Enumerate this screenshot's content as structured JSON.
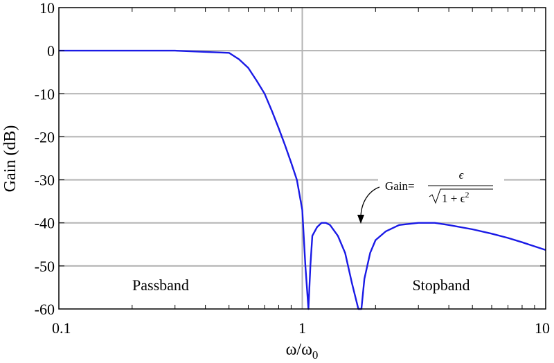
{
  "chart_data": {
    "type": "line",
    "xscale": "log",
    "xlim": [
      0.1,
      10
    ],
    "ylim": [
      -60,
      10
    ],
    "xlabel": "ω/ω",
    "xlabel_sub": "0",
    "ylabel": "Gain (dB)",
    "xticks": [
      "0.1",
      "1",
      "10"
    ],
    "yticks": [
      "10",
      "0",
      "-10",
      "-20",
      "-30",
      "-40",
      "-50",
      "-60"
    ],
    "grid": true,
    "series": [
      {
        "color": "#1a1ae6",
        "x": [
          0.1,
          0.3,
          0.5,
          0.55,
          0.6,
          0.65,
          0.7,
          0.75,
          0.8,
          0.85,
          0.9,
          0.95,
          1.0,
          1.03,
          1.06,
          1.08,
          1.1,
          1.15,
          1.2,
          1.25,
          1.3,
          1.4,
          1.5,
          1.6,
          1.7,
          1.75,
          1.8,
          1.9,
          2.0,
          2.2,
          2.5,
          3.0,
          3.5,
          4.0,
          5.0,
          6.0,
          7.0,
          8.0,
          10.0
        ],
        "y": [
          0,
          0,
          -0.5,
          -2,
          -4,
          -7,
          -10,
          -14,
          -18,
          -22,
          -26,
          -30,
          -37,
          -50,
          -60,
          -50,
          -43,
          -41,
          -40,
          -40,
          -40.5,
          -43,
          -47,
          -54,
          -60,
          -60,
          -53,
          -47,
          -44,
          -42,
          -40.5,
          -40,
          -40,
          -40.5,
          -41.5,
          -42.5,
          -43.5,
          -44.5,
          -46.3
        ]
      }
    ],
    "annotations": {
      "passband": "Passband",
      "stopband": "Stopband",
      "gain_prefix": "Gain=",
      "gain_numerator": "ϵ",
      "gain_denominator": "1 + ϵ",
      "gain_exponent": "2"
    },
    "colors": {
      "curve": "#1a1ae6",
      "grid": "#b3b3b3"
    }
  }
}
